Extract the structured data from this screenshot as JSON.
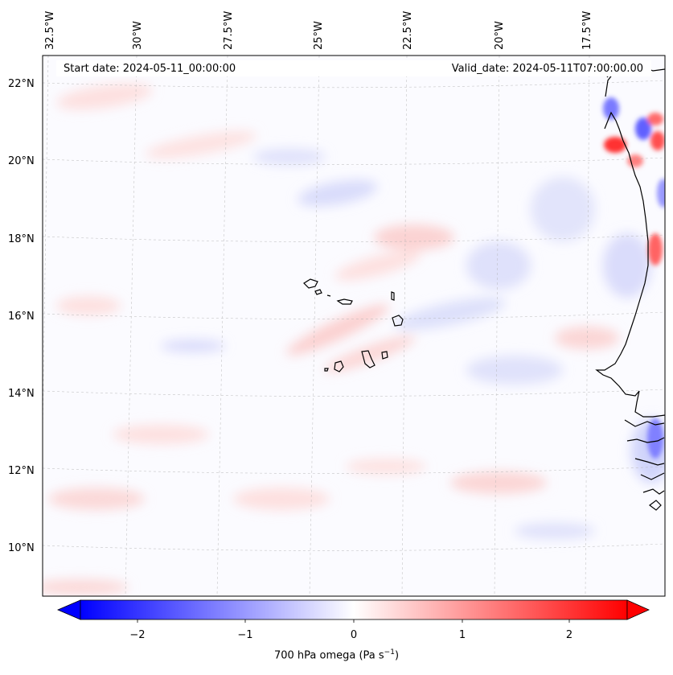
{
  "map": {
    "start_label": "Start date: 2024-05-11_00:00:00",
    "valid_label": "Valid_date: 2024-05-11T07:00:00.00",
    "variable": "700 hPa omega",
    "longitude_labels": [
      "32.5°W",
      "30°W",
      "27.5°W",
      "25°W",
      "22.5°W",
      "20°W",
      "17.5°W"
    ],
    "latitude_labels": [
      "22°N",
      "20°N",
      "18°N",
      "16°N",
      "14°N",
      "12°N",
      "10°N"
    ],
    "colorbar": {
      "title_main": "700 hPa omega (Pa s",
      "title_exp": "−1",
      "title_close": ")",
      "ticks": [
        "−2",
        "−1",
        "0",
        "1",
        "2"
      ],
      "min": -2.5,
      "max": 2.5,
      "low_color": "#0000ff",
      "mid_color": "#ffffff",
      "high_color": "#ff0000"
    },
    "coast_color": "#000000",
    "grid_color": "#b0b0b0"
  }
}
